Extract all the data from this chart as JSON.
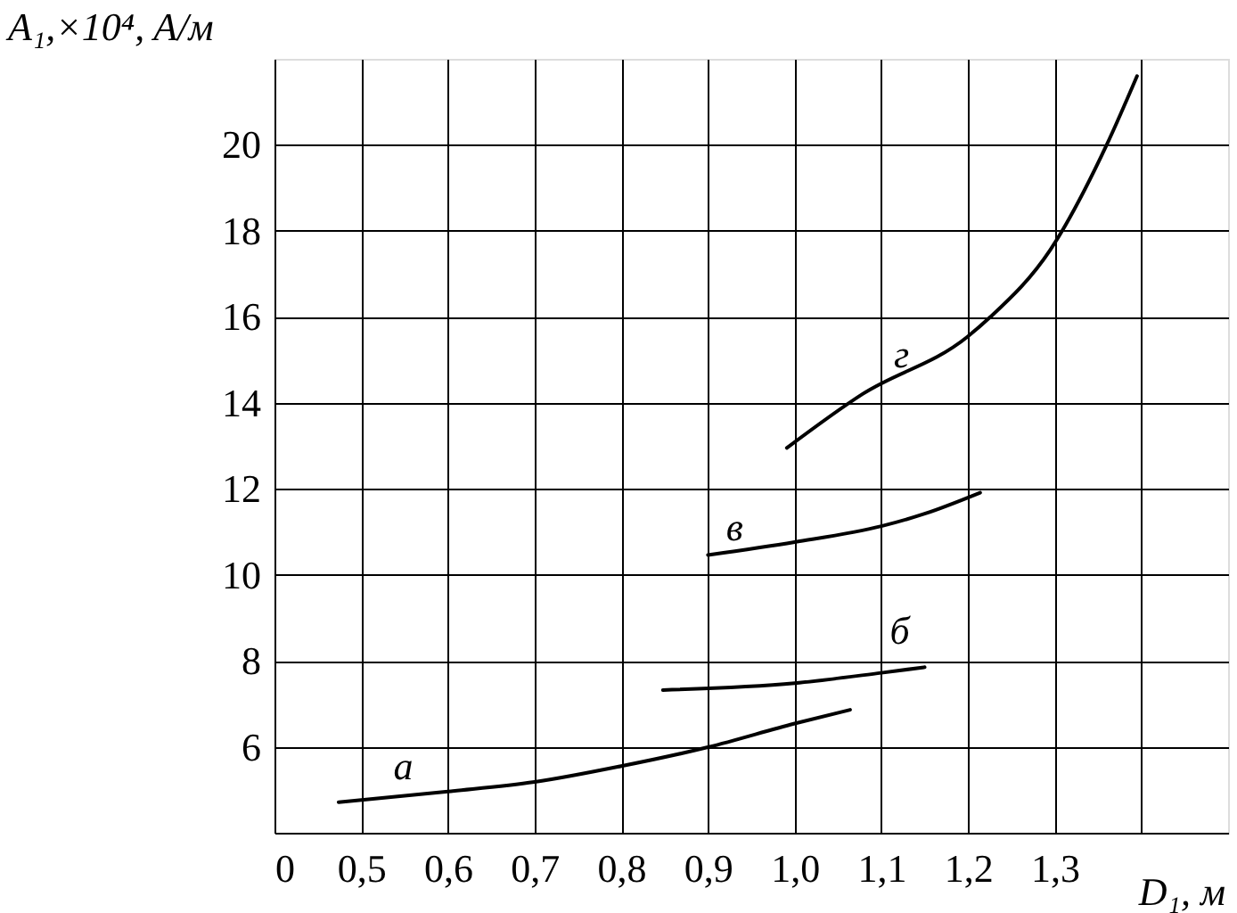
{
  "chart_data": {
    "type": "line",
    "xlabel": "D₁, м",
    "ylabel": "A₁,×10⁴, A/м",
    "xlim": [
      0.4,
      1.5
    ],
    "ylim": [
      4,
      22
    ],
    "xticks": [
      {
        "value": 0.4,
        "label": "0"
      },
      {
        "value": 0.5,
        "label": "0,5"
      },
      {
        "value": 0.6,
        "label": "0,6"
      },
      {
        "value": 0.7,
        "label": "0,7"
      },
      {
        "value": 0.8,
        "label": "0,8"
      },
      {
        "value": 0.9,
        "label": "0,9"
      },
      {
        "value": 1.0,
        "label": "1,0"
      },
      {
        "value": 1.1,
        "label": "1,1"
      },
      {
        "value": 1.2,
        "label": "1,2"
      },
      {
        "value": 1.3,
        "label": "1,3"
      },
      {
        "value": 1.4,
        "label": null
      }
    ],
    "yticks": [
      6,
      8,
      10,
      12,
      14,
      16,
      18,
      20
    ],
    "grid": true,
    "marker": "none",
    "line_style": "solid",
    "series": [
      {
        "name": "а",
        "color": "#000000",
        "x": [
          0.474,
          0.6,
          0.7,
          0.8,
          0.9,
          1.0,
          1.064
        ],
        "values": [
          4.71,
          4.96,
          5.18,
          5.55,
          5.99,
          6.54,
          6.86
        ]
      },
      {
        "name": "б",
        "color": "#000000",
        "x": [
          0.848,
          1.0,
          1.1,
          1.15
        ],
        "values": [
          7.32,
          7.48,
          7.72,
          7.85
        ]
      },
      {
        "name": "в",
        "color": "#000000",
        "x": [
          0.9,
          1.0,
          1.1,
          1.15,
          1.214
        ],
        "values": [
          10.46,
          10.76,
          11.13,
          11.42,
          11.91
        ]
      },
      {
        "name": "г",
        "color": "#000000",
        "x": [
          0.991,
          1.078,
          1.199,
          1.226,
          1.295,
          1.36,
          1.395
        ],
        "values": [
          12.95,
          14.2,
          15.53,
          16.0,
          17.56,
          20.0,
          21.6
        ]
      }
    ]
  }
}
